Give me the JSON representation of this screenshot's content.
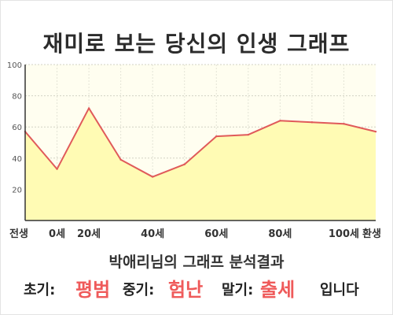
{
  "title": "재미로 보는 당신의 인생 그래프",
  "subtitle": "박애리님의 그래프 분석결과",
  "result": {
    "early_label": "초기:",
    "early_value": "평범",
    "middle_label": "중기:",
    "middle_value": "험난",
    "late_label": "말기:",
    "late_value": "출세",
    "ending": "입니다"
  },
  "colors": {
    "line": "#e05a5a",
    "fill": "#fffbb4",
    "plot_background": "#fffef0",
    "highlight_text": "#ef5a5a"
  },
  "chart_data": {
    "type": "area",
    "title": "재미로 보는 당신의 인생 그래프",
    "xlabel": "",
    "ylabel": "",
    "x_ticks": [
      "전생",
      "0세",
      "20세",
      "40세",
      "60세",
      "80세",
      "100세",
      "환생"
    ],
    "y_ticks": [
      "100",
      "80",
      "60",
      "40",
      "20"
    ],
    "ylim": [
      0,
      100
    ],
    "grid": true,
    "points": [
      {
        "x": "전생",
        "y": 57
      },
      {
        "x": "0세",
        "y": 33
      },
      {
        "x": "20세",
        "y": 72
      },
      {
        "x": "30세",
        "y": 39
      },
      {
        "x": "40세",
        "y": 28
      },
      {
        "x": "50세",
        "y": 36
      },
      {
        "x": "60세",
        "y": 54
      },
      {
        "x": "70세",
        "y": 55
      },
      {
        "x": "80세",
        "y": 64
      },
      {
        "x": "90세",
        "y": 63
      },
      {
        "x": "100세",
        "y": 62
      },
      {
        "x": "환생",
        "y": 57
      }
    ]
  }
}
